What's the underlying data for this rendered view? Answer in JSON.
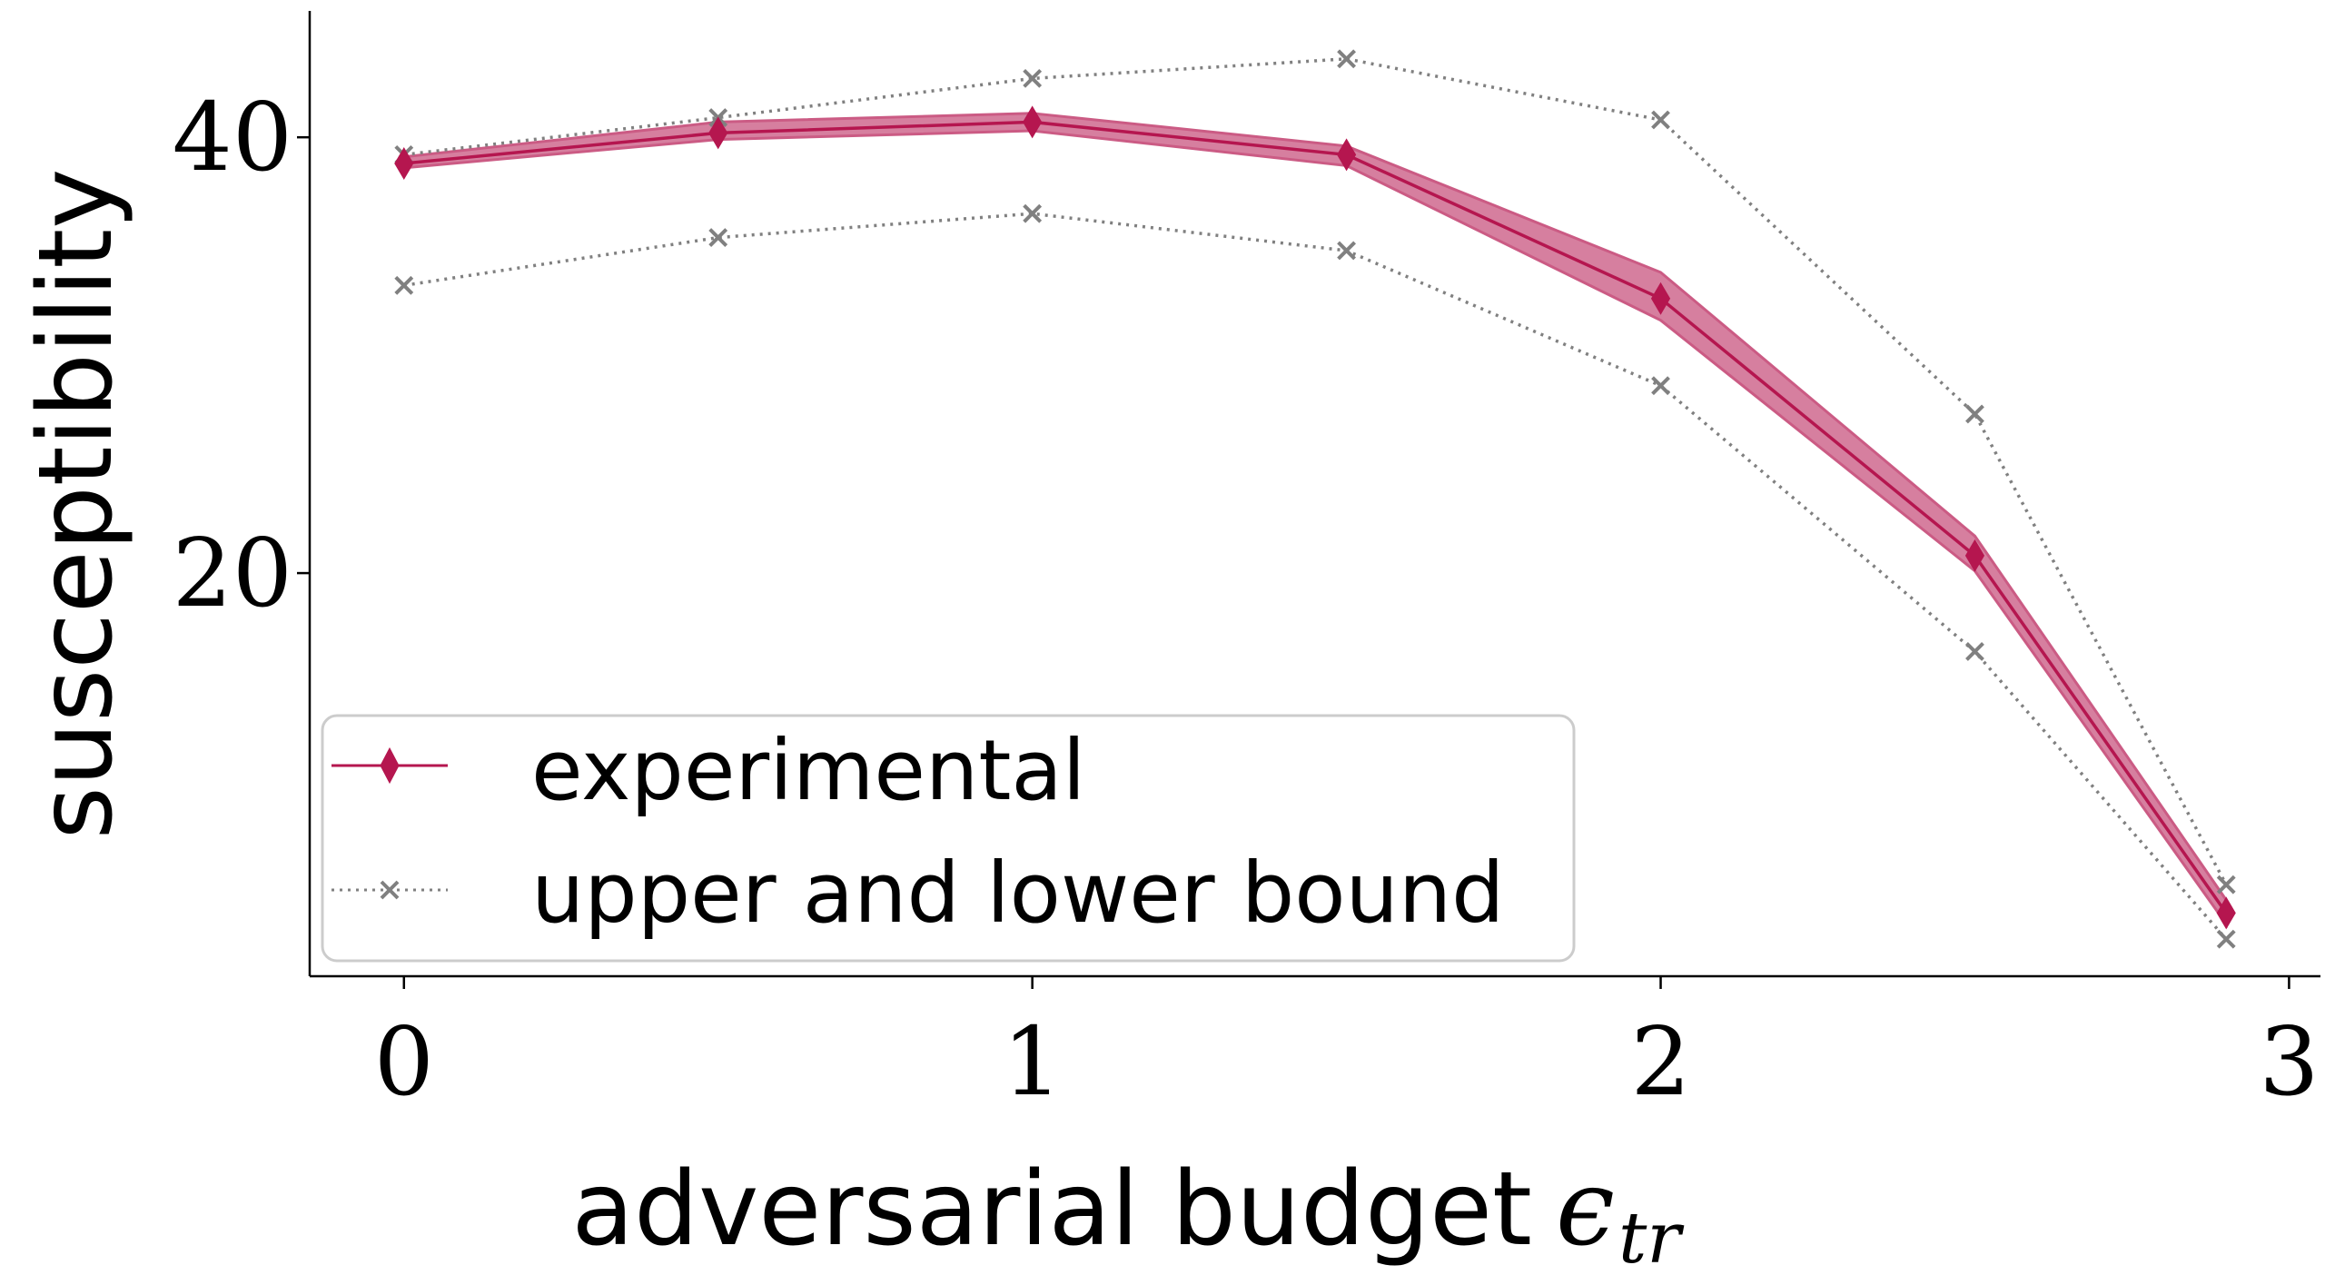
{
  "chart_data": {
    "type": "line",
    "title": "",
    "xlabel": "adversarial budget",
    "xlabel_symbol": "ϵ",
    "xlabel_subscript": "tr",
    "ylabel": "susceptibility",
    "x": [
      0,
      0.5,
      1,
      1.5,
      2,
      2.5,
      2.9
    ],
    "xlim": [
      -0.15,
      3.05
    ],
    "ylim": [
      1.5,
      45.8
    ],
    "xticks": [
      0,
      1,
      2,
      3
    ],
    "xtick_labels": [
      "0",
      "1",
      "2",
      "3"
    ],
    "yticks": [
      20,
      40
    ],
    "ytick_labels": [
      "20",
      "40"
    ],
    "grid": false,
    "legend_position": "lower-left",
    "series": [
      {
        "name": "experimental",
        "color": "#b5164f",
        "marker": "diamond",
        "line_style": "solid",
        "values": [
          38.8,
          40.2,
          40.7,
          39.2,
          32.6,
          20.8,
          4.4
        ],
        "band_lower": [
          38.6,
          39.9,
          40.3,
          38.7,
          31.6,
          20.1,
          3.9
        ],
        "band_upper": [
          39.1,
          40.7,
          41.1,
          39.6,
          33.8,
          21.7,
          5.0
        ],
        "band_color": "#cb5b84"
      },
      {
        "name": "upper and lower bound",
        "color": "#808080",
        "marker": "x",
        "line_style": "dotted",
        "upper_values": [
          39.2,
          40.9,
          42.7,
          43.6,
          40.8,
          27.3,
          5.7
        ],
        "lower_values": [
          33.2,
          35.4,
          36.5,
          34.8,
          28.6,
          16.4,
          3.2
        ]
      }
    ]
  }
}
